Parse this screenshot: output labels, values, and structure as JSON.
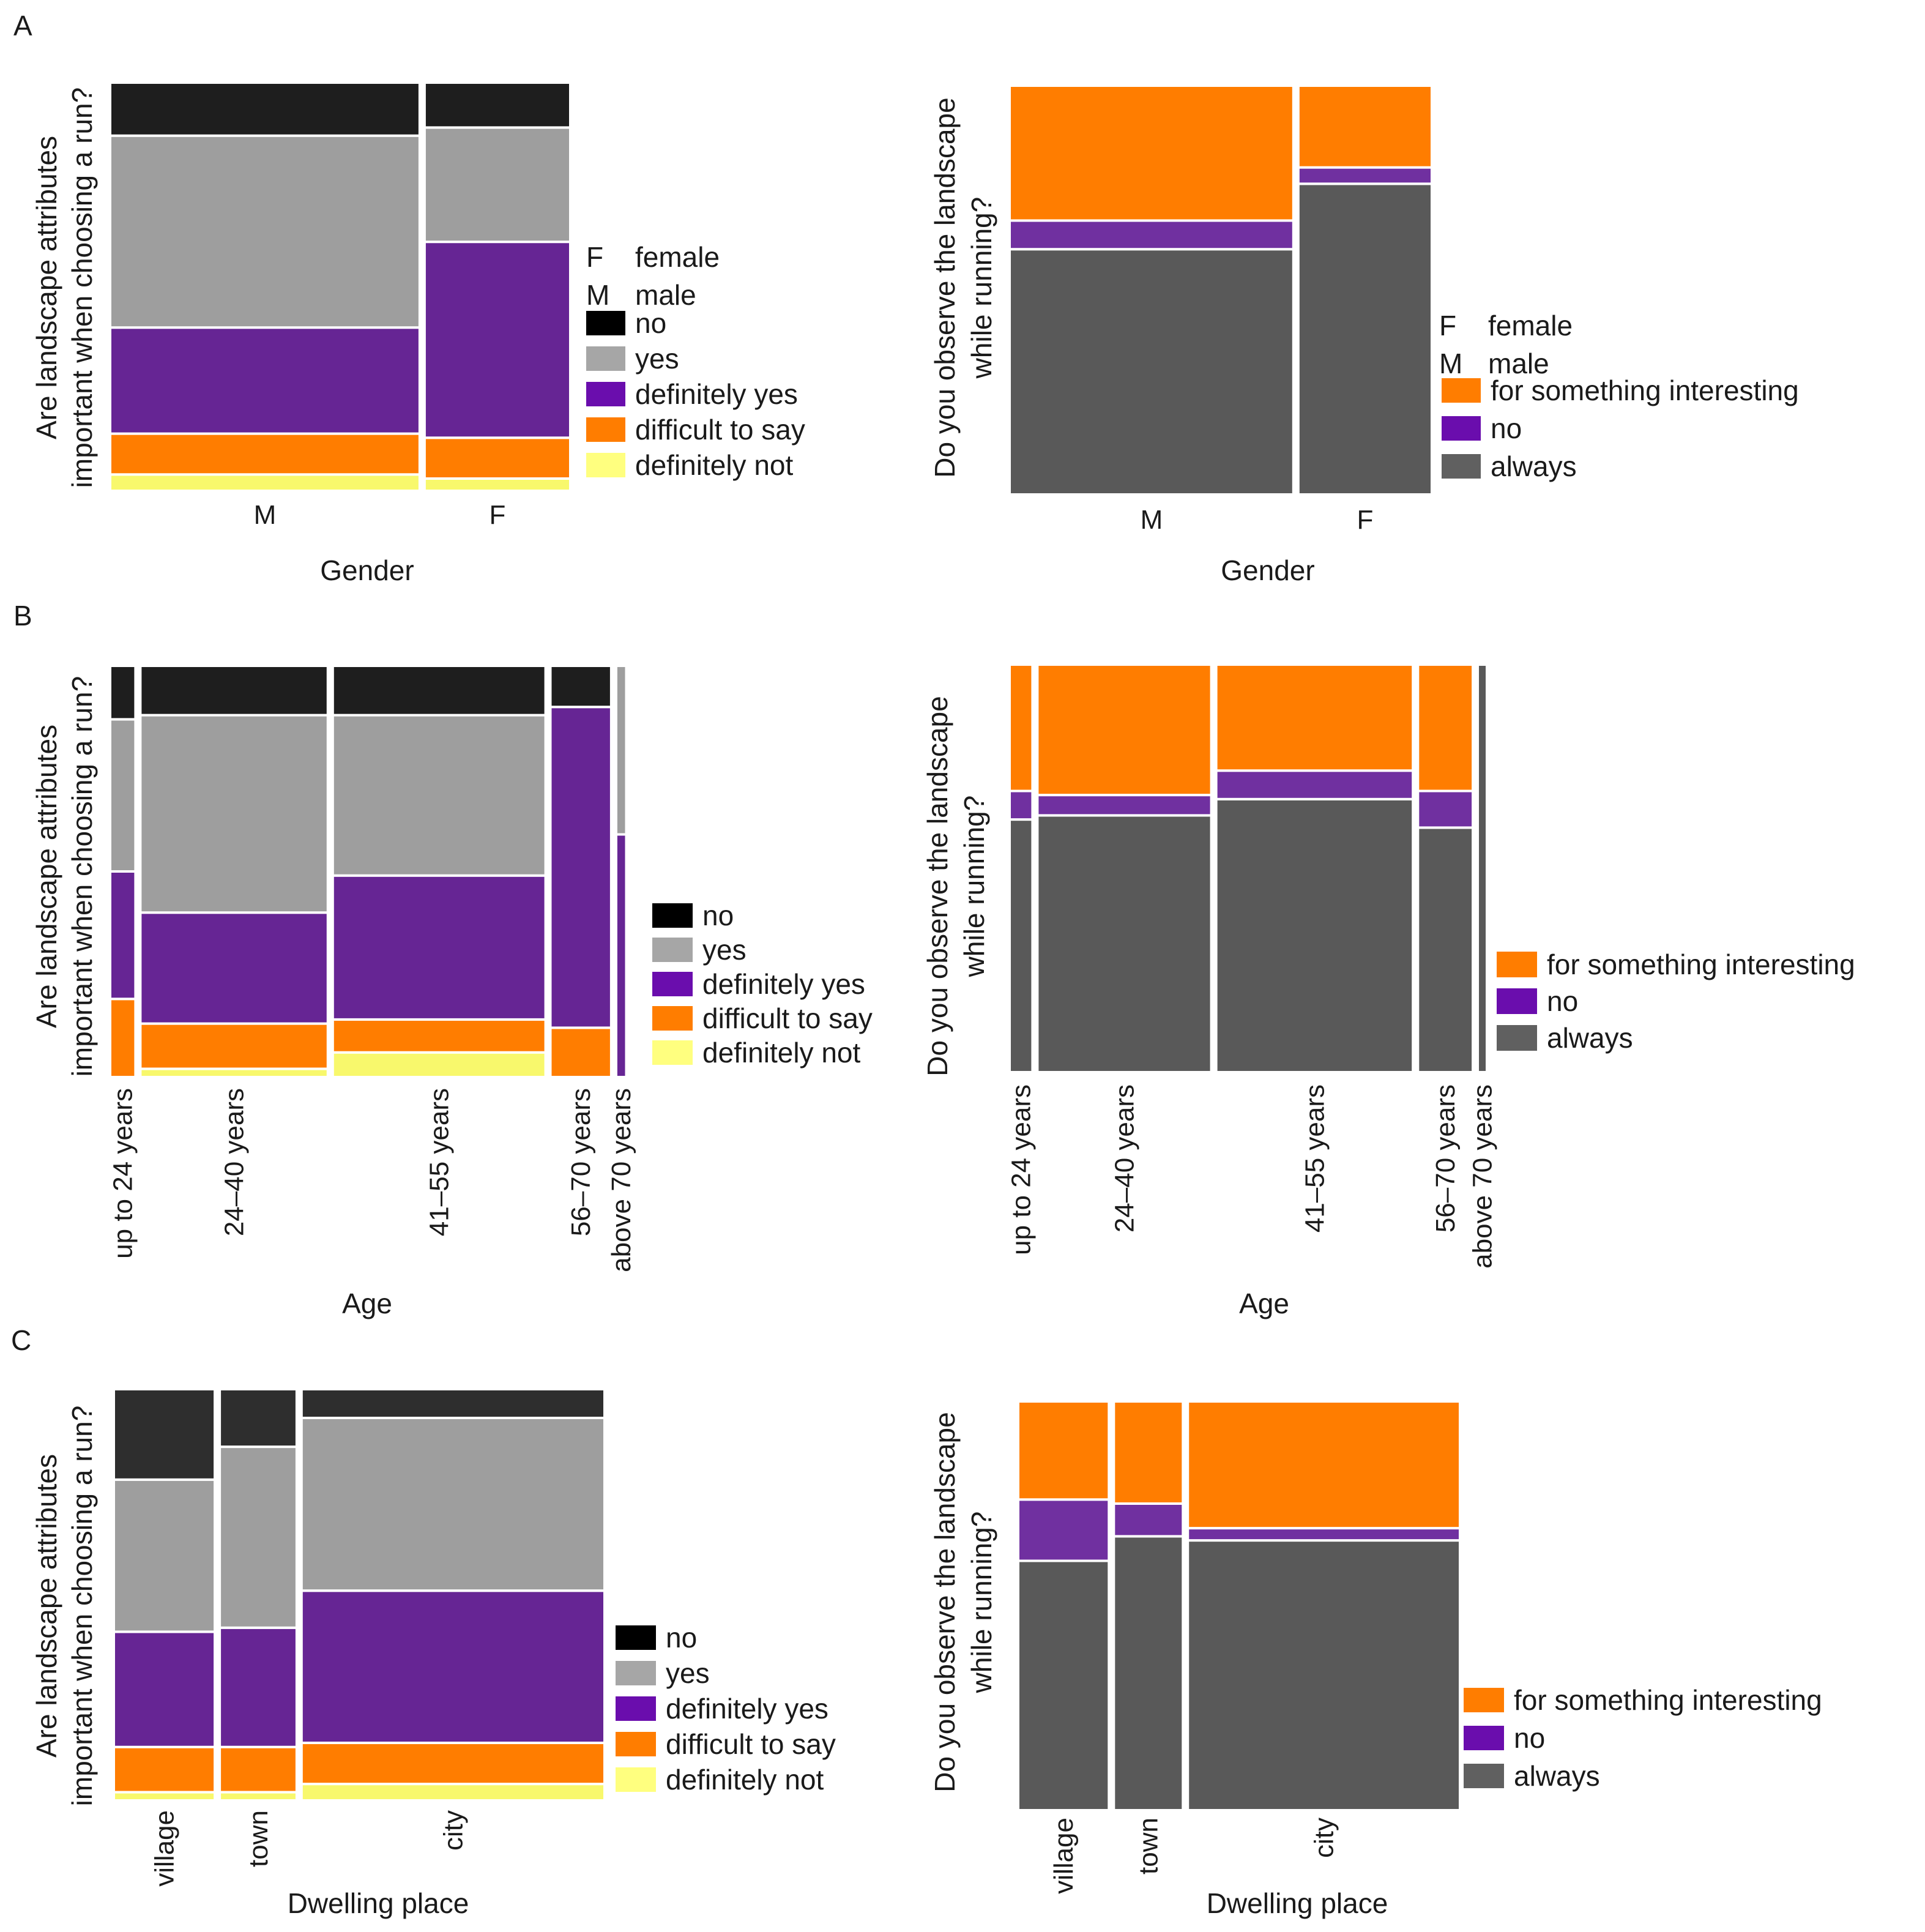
{
  "colors": {
    "no": "#1e1e1e",
    "no_C": "#2e2e2e",
    "yes": "#9e9e9e",
    "definitely_yes": "#662594",
    "difficult_to_say": "#ff7d00",
    "definitely_not": "#f8f86c",
    "legend_no": "#000000",
    "legend_yes": "#a6a6a6",
    "legend_definitely_yes": "#6a0dad",
    "legend_definitely_not": "#ffff7f",
    "for_something_interesting": "#ff7d00",
    "observe_no": "#7030a0",
    "always": "#595959",
    "legend_observe_no": "#6a0dad",
    "legend_always": "#606060"
  },
  "chart_data": [
    {
      "id": "A-left",
      "panel": "A",
      "type": "mosaic",
      "xlabel": "Gender",
      "ylabel": [
        "Are landscape attributes",
        "important when choosing a run?"
      ],
      "categories": [
        "M",
        "F"
      ],
      "widths": [
        0.68,
        0.32
      ],
      "series": [
        {
          "name": "definitely not",
          "color": "definitely_not",
          "values": [
            0.04,
            0.03
          ]
        },
        {
          "name": "difficult to say",
          "color": "difficult_to_say",
          "values": [
            0.1,
            0.1
          ]
        },
        {
          "name": "definitely yes",
          "color": "definitely_yes",
          "values": [
            0.26,
            0.48
          ]
        },
        {
          "name": "yes",
          "color": "yes",
          "values": [
            0.47,
            0.28
          ]
        },
        {
          "name": "no",
          "color": "no",
          "values": [
            0.13,
            0.11
          ]
        }
      ],
      "legend_abbrev": [
        {
          "key": "F",
          "label": "female"
        },
        {
          "key": "M",
          "label": "male"
        }
      ],
      "legend": [
        {
          "label": "no",
          "color": "legend_no"
        },
        {
          "label": "yes",
          "color": "legend_yes"
        },
        {
          "label": "definitely yes",
          "color": "legend_definitely_yes"
        },
        {
          "label": "difficult to say",
          "color": "difficult_to_say"
        },
        {
          "label": "definitely not",
          "color": "legend_definitely_not"
        }
      ]
    },
    {
      "id": "A-right",
      "panel": "A",
      "type": "mosaic",
      "xlabel": "Gender",
      "ylabel": [
        "Do you observe the landscape",
        "while running?"
      ],
      "categories": [
        "M",
        "F"
      ],
      "widths": [
        0.68,
        0.32
      ],
      "series": [
        {
          "name": "always",
          "color": "always",
          "values": [
            0.6,
            0.76
          ]
        },
        {
          "name": "no",
          "color": "observe_no",
          "values": [
            0.07,
            0.04
          ]
        },
        {
          "name": "for something interesting",
          "color": "for_something_interesting",
          "values": [
            0.33,
            0.2
          ]
        }
      ],
      "legend_abbrev": [
        {
          "key": "F",
          "label": "female"
        },
        {
          "key": "M",
          "label": "male"
        }
      ],
      "legend": [
        {
          "label": "for something interesting",
          "color": "for_something_interesting"
        },
        {
          "label": "no",
          "color": "legend_observe_no"
        },
        {
          "label": "always",
          "color": "legend_always"
        }
      ]
    },
    {
      "id": "B-left",
      "panel": "B",
      "type": "mosaic",
      "xlabel": "Age",
      "ylabel": [
        "Are landscape attributes",
        "important when choosing a run?"
      ],
      "categories": [
        "up to 24 years",
        "24–40 years",
        "41–55 years",
        "56–70 years",
        "above 70 years"
      ],
      "widths": [
        0.05,
        0.37,
        0.42,
        0.12,
        0.02
      ],
      "series": [
        {
          "name": "definitely not",
          "color": "definitely_not",
          "values": [
            0.0,
            0.02,
            0.06,
            0.0,
            0.0
          ]
        },
        {
          "name": "difficult to say",
          "color": "difficult_to_say",
          "values": [
            0.19,
            0.11,
            0.08,
            0.12,
            0.0
          ]
        },
        {
          "name": "definitely yes",
          "color": "definitely_yes",
          "values": [
            0.31,
            0.27,
            0.35,
            0.78,
            0.59
          ]
        },
        {
          "name": "yes",
          "color": "yes",
          "values": [
            0.37,
            0.48,
            0.39,
            0.0,
            0.41
          ]
        },
        {
          "name": "no",
          "color": "no",
          "values": [
            0.13,
            0.12,
            0.12,
            0.1,
            0.0
          ]
        }
      ],
      "legend": [
        {
          "label": "no",
          "color": "legend_no"
        },
        {
          "label": "yes",
          "color": "legend_yes"
        },
        {
          "label": "definitely yes",
          "color": "legend_definitely_yes"
        },
        {
          "label": "difficult to say",
          "color": "difficult_to_say"
        },
        {
          "label": "definitely not",
          "color": "legend_definitely_not"
        }
      ]
    },
    {
      "id": "B-right",
      "panel": "B",
      "type": "mosaic",
      "xlabel": "Age",
      "ylabel": [
        "Do you observe the landscape",
        "while running?"
      ],
      "categories": [
        "up to 24 years",
        "24–40 years",
        "41–55 years",
        "56–70 years",
        "above 70 years"
      ],
      "widths": [
        0.05,
        0.38,
        0.43,
        0.12,
        0.02
      ],
      "series": [
        {
          "name": "always",
          "color": "always",
          "values": [
            0.62,
            0.63,
            0.67,
            0.6,
            1.0
          ]
        },
        {
          "name": "no",
          "color": "observe_no",
          "values": [
            0.07,
            0.05,
            0.07,
            0.09,
            0.0
          ]
        },
        {
          "name": "for something interesting",
          "color": "for_something_interesting",
          "values": [
            0.31,
            0.32,
            0.26,
            0.31,
            0.0
          ]
        }
      ],
      "legend": [
        {
          "label": "for something interesting",
          "color": "for_something_interesting"
        },
        {
          "label": "no",
          "color": "legend_observe_no"
        },
        {
          "label": "always",
          "color": "legend_always"
        }
      ]
    },
    {
      "id": "C-left",
      "panel": "C",
      "type": "mosaic",
      "xlabel": "Dwelling place",
      "ylabel": [
        "Are landscape attributes",
        "important when choosing a run?"
      ],
      "categories": [
        "village",
        "town",
        "city"
      ],
      "widths": [
        0.21,
        0.16,
        0.63
      ],
      "series": [
        {
          "name": "definitely not",
          "color": "definitely_not",
          "values": [
            0.02,
            0.02,
            0.04
          ]
        },
        {
          "name": "difficult to say",
          "color": "difficult_to_say",
          "values": [
            0.11,
            0.11,
            0.1
          ]
        },
        {
          "name": "definitely yes",
          "color": "definitely_yes",
          "values": [
            0.28,
            0.29,
            0.37
          ]
        },
        {
          "name": "yes",
          "color": "yes",
          "values": [
            0.37,
            0.44,
            0.42
          ]
        },
        {
          "name": "no",
          "color": "no_C",
          "values": [
            0.22,
            0.14,
            0.07
          ]
        }
      ],
      "legend": [
        {
          "label": "no",
          "color": "legend_no"
        },
        {
          "label": "yes",
          "color": "legend_yes"
        },
        {
          "label": "definitely yes",
          "color": "legend_definitely_yes"
        },
        {
          "label": "difficult to say",
          "color": "difficult_to_say"
        },
        {
          "label": "definitely not",
          "color": "legend_definitely_not"
        }
      ]
    },
    {
      "id": "C-right",
      "panel": "C",
      "type": "mosaic",
      "xlabel": "Dwelling place",
      "ylabel": [
        "Do you observe the landscape",
        "while running?"
      ],
      "categories": [
        "village",
        "town",
        "city"
      ],
      "widths": [
        0.21,
        0.16,
        0.63
      ],
      "series": [
        {
          "name": "always",
          "color": "always",
          "values": [
            0.61,
            0.67,
            0.66
          ]
        },
        {
          "name": "no",
          "color": "observe_no",
          "values": [
            0.15,
            0.08,
            0.03
          ]
        },
        {
          "name": "for something interesting",
          "color": "for_something_interesting",
          "values": [
            0.24,
            0.25,
            0.31
          ]
        }
      ],
      "legend": [
        {
          "label": "for something interesting",
          "color": "for_something_interesting"
        },
        {
          "label": "no",
          "color": "legend_observe_no"
        },
        {
          "label": "always",
          "color": "legend_always"
        }
      ]
    }
  ]
}
